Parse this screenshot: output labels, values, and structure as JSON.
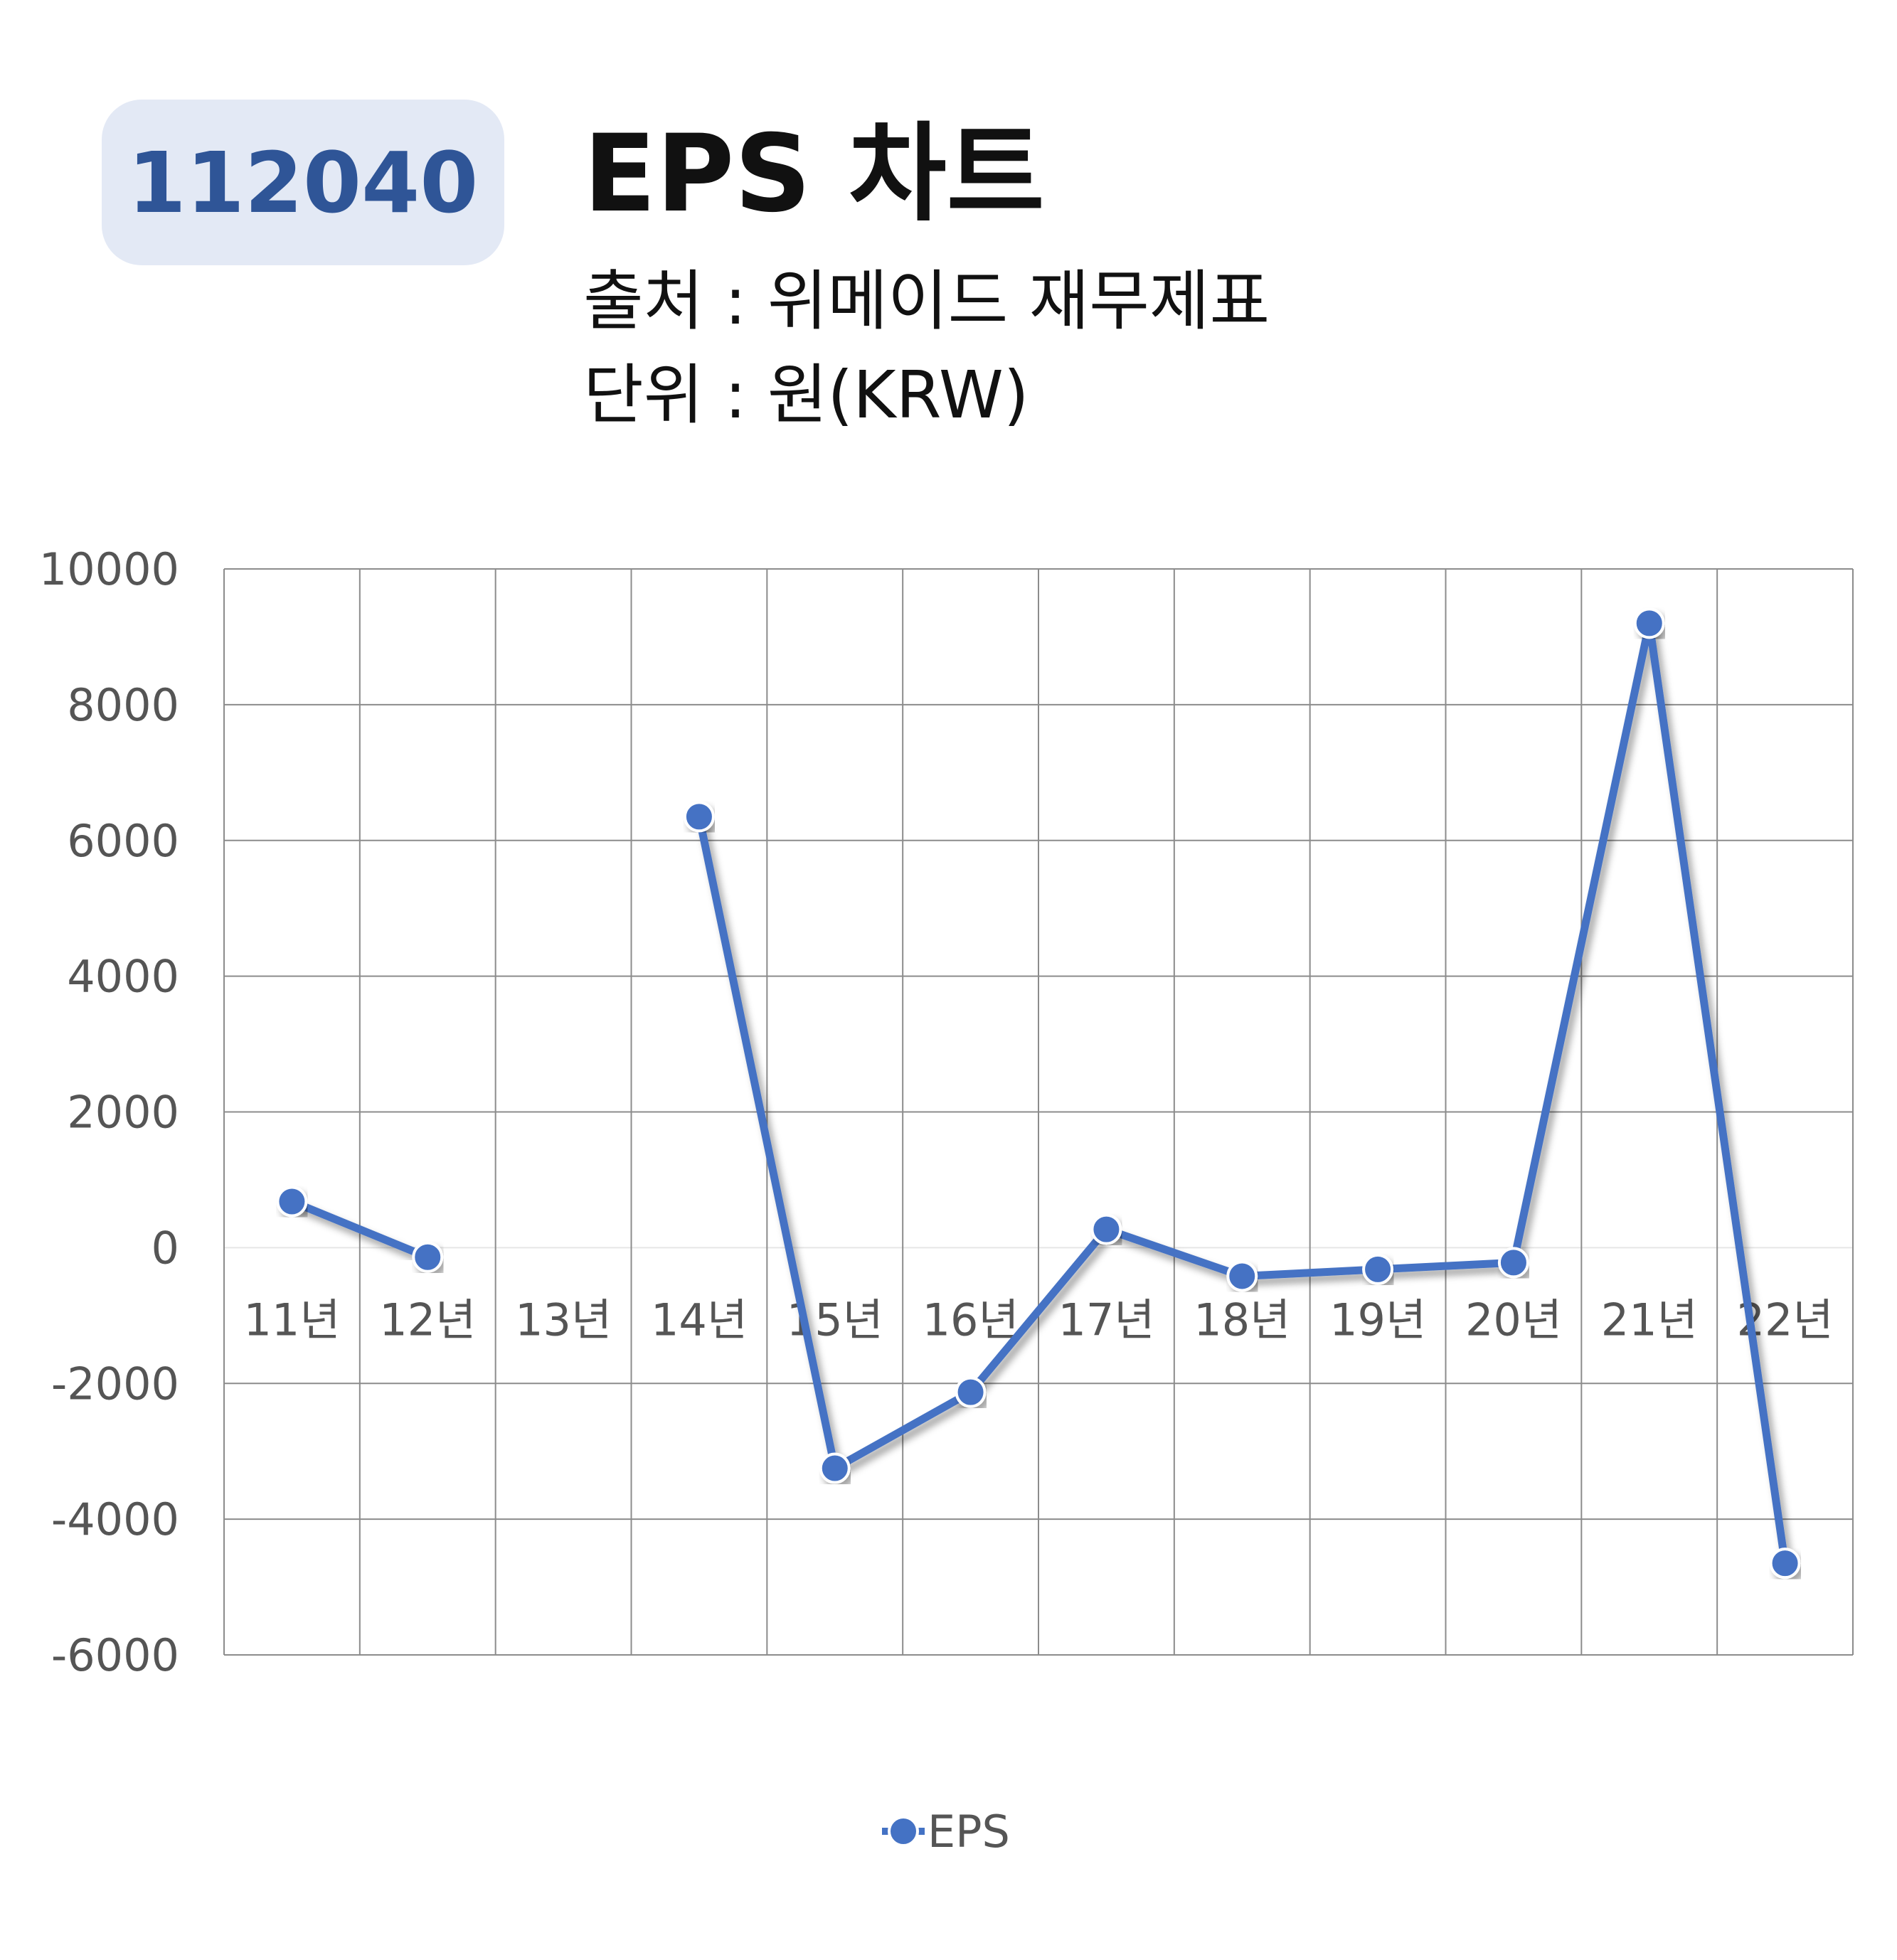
{
  "badge": "112040",
  "title": "EPS 차트",
  "subtitle_source": "출처 : 위메이드 재무제표",
  "subtitle_unit": "단위 : 원(KRW)",
  "chart_data": {
    "type": "line",
    "categories": [
      "11년",
      "12년",
      "13년",
      "14년",
      "15년",
      "16년",
      "17년",
      "18년",
      "19년",
      "20년",
      "21년",
      "22년"
    ],
    "series": [
      {
        "name": "EPS",
        "values": [
          680,
          -140,
          null,
          6350,
          -3250,
          -2130,
          270,
          -420,
          -320,
          -220,
          9200,
          -4650
        ],
        "color": "#4472c4"
      }
    ],
    "yticks": [
      "10000",
      "8000",
      "6000",
      "4000",
      "2000",
      "0",
      "-2000",
      "-4000",
      "-6000"
    ],
    "ylim": [
      -6000,
      10000
    ],
    "grid": true,
    "legend": "bottom"
  }
}
